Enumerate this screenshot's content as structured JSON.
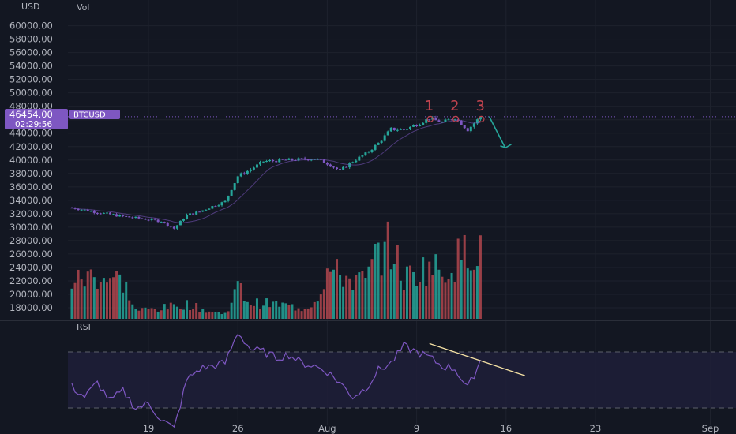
{
  "toolbar": {
    "currency": "USD",
    "vol_label": "Vol"
  },
  "rsi_pane": {
    "label": "RSI"
  },
  "price_tag": {
    "price": "46454.00",
    "countdown": "02:29:56",
    "symbol": "BTCUSD"
  },
  "colors": {
    "up": "#26a69a",
    "down": "#b2474e",
    "ma": "#7e57c2",
    "rsi": "#7e57c2",
    "band": "#1f1f38",
    "bg": "#131722",
    "annotation": "#26a69a",
    "trendline": "#f5e1a4",
    "marks": "#c2444f"
  },
  "annotations": {
    "marks": [
      "1",
      "2",
      "3"
    ]
  },
  "chart_data": [
    {
      "type": "candlestick",
      "yaxis": {
        "range": [
          16000,
          62000
        ],
        "ticks": [
          18000,
          20000,
          22000,
          24000,
          26000,
          28000,
          30000,
          32000,
          34000,
          36000,
          38000,
          40000,
          42000,
          44000,
          46000,
          48000,
          50000,
          52000,
          54000,
          56000,
          58000,
          60000
        ],
        "tick_labels": [
          "18000.00",
          "20000.00",
          "22000.00",
          "24000.00",
          "26000.00",
          "28000.00",
          "30000.00",
          "32000.00",
          "34000.00",
          "36000.00",
          "38000.00",
          "40000.00",
          "42000.00",
          "44000.00",
          "46000.00",
          "48000.00",
          "50000.00",
          "52000.00",
          "54000.00",
          "56000.00",
          "58000.00",
          "60000.00"
        ]
      },
      "xaxis": {
        "range": [
          "2021-07-13",
          "2021-09-04"
        ],
        "ticks": [
          "2021-07-19",
          "2021-07-26",
          "2021-08-02",
          "2021-08-09",
          "2021-08-16",
          "2021-08-23",
          "2021-09-01"
        ],
        "tick_labels": [
          "19",
          "26",
          "Aug",
          "9",
          "16",
          "23",
          "Sep"
        ]
      },
      "last_price": 46454,
      "series": [
        {
          "name": "price",
          "key_points": [
            [
              "2021-07-13",
              32900
            ],
            [
              "2021-07-15",
              32200
            ],
            [
              "2021-07-17",
              31600
            ],
            [
              "2021-07-20",
              30900
            ],
            [
              "2021-07-21",
              29800
            ],
            [
              "2021-07-22",
              31800
            ],
            [
              "2021-07-23",
              32300
            ],
            [
              "2021-07-24",
              33100
            ],
            [
              "2021-07-25",
              33800
            ],
            [
              "2021-07-26",
              37600
            ],
            [
              "2021-07-27",
              38600
            ],
            [
              "2021-07-28",
              39800
            ],
            [
              "2021-07-30",
              40000
            ],
            [
              "2021-08-01",
              40200
            ],
            [
              "2021-08-02",
              39500
            ],
            [
              "2021-08-03",
              38400
            ],
            [
              "2021-08-04",
              39800
            ],
            [
              "2021-08-05",
              40900
            ],
            [
              "2021-08-06",
              42500
            ],
            [
              "2021-08-07",
              44600
            ],
            [
              "2021-08-08",
              44500
            ],
            [
              "2021-08-09",
              45300
            ],
            [
              "2021-08-10",
              46200
            ],
            [
              "2021-08-11",
              45600
            ],
            [
              "2021-08-12",
              46300
            ],
            [
              "2021-08-13",
              44500
            ],
            [
              "2021-08-14",
              46454
            ]
          ]
        }
      ]
    },
    {
      "type": "bar",
      "name": "Vol",
      "xaxis": {
        "range": [
          "2021-07-13",
          "2021-08-14"
        ]
      },
      "key_points": [
        [
          "2021-07-13",
          0.35
        ],
        [
          "2021-07-15",
          0.42
        ],
        [
          "2021-07-17",
          0.36
        ],
        [
          "2021-07-18",
          0.08
        ],
        [
          "2021-07-20",
          0.1
        ],
        [
          "2021-07-22",
          0.14
        ],
        [
          "2021-07-24",
          0.06
        ],
        [
          "2021-07-25",
          0.05
        ],
        [
          "2021-07-26",
          0.3
        ],
        [
          "2021-07-27",
          0.15
        ],
        [
          "2021-07-29",
          0.14
        ],
        [
          "2021-07-31",
          0.1
        ],
        [
          "2021-08-01",
          0.16
        ],
        [
          "2021-08-02",
          0.45
        ],
        [
          "2021-08-03",
          0.42
        ],
        [
          "2021-08-04",
          0.38
        ],
        [
          "2021-08-05",
          0.35
        ],
        [
          "2021-08-06",
          0.63
        ],
        [
          "2021-08-07",
          0.7
        ],
        [
          "2021-08-08",
          0.38
        ],
        [
          "2021-08-09",
          0.45
        ],
        [
          "2021-08-10",
          0.5
        ],
        [
          "2021-08-11",
          0.45
        ],
        [
          "2021-08-12",
          0.55
        ],
        [
          "2021-08-13",
          0.65
        ],
        [
          "2021-08-14",
          0.72
        ]
      ]
    },
    {
      "type": "line",
      "name": "RSI",
      "yaxis": {
        "range": [
          0,
          100
        ],
        "bands": [
          30,
          70
        ],
        "midline": 50
      },
      "xaxis": {
        "range": [
          "2021-07-13",
          "2021-08-14"
        ]
      },
      "key_points": [
        [
          "2021-07-13",
          45
        ],
        [
          "2021-07-14",
          38
        ],
        [
          "2021-07-15",
          48
        ],
        [
          "2021-07-16",
          35
        ],
        [
          "2021-07-17",
          42
        ],
        [
          "2021-07-18",
          30
        ],
        [
          "2021-07-19",
          33
        ],
        [
          "2021-07-20",
          22
        ],
        [
          "2021-07-21",
          15
        ],
        [
          "2021-07-22",
          50
        ],
        [
          "2021-07-23",
          58
        ],
        [
          "2021-07-24",
          60
        ],
        [
          "2021-07-25",
          62
        ],
        [
          "2021-07-26",
          84
        ],
        [
          "2021-07-27",
          72
        ],
        [
          "2021-07-28",
          70
        ],
        [
          "2021-07-29",
          66
        ],
        [
          "2021-07-30",
          68
        ],
        [
          "2021-07-31",
          62
        ],
        [
          "2021-08-01",
          60
        ],
        [
          "2021-08-02",
          56
        ],
        [
          "2021-08-03",
          48
        ],
        [
          "2021-08-04",
          38
        ],
        [
          "2021-08-05",
          44
        ],
        [
          "2021-08-06",
          57
        ],
        [
          "2021-08-07",
          62
        ],
        [
          "2021-08-08",
          74
        ],
        [
          "2021-08-09",
          70
        ],
        [
          "2021-08-10",
          66
        ],
        [
          "2021-08-11",
          60
        ],
        [
          "2021-08-12",
          58
        ],
        [
          "2021-08-13",
          44
        ],
        [
          "2021-08-14",
          64
        ]
      ]
    }
  ]
}
